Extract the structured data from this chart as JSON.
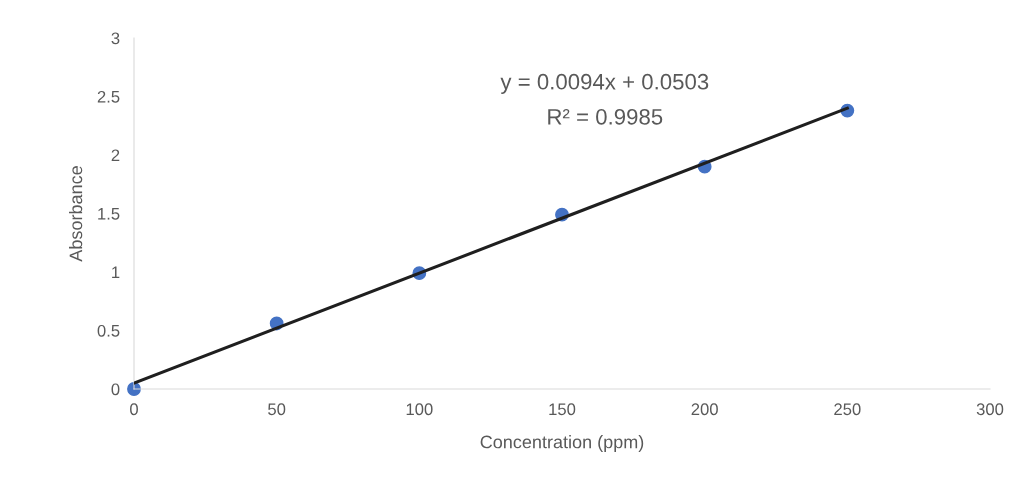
{
  "chart_data": {
    "type": "scatter",
    "xlabel": "Concentration (ppm)",
    "ylabel": "Absorbance",
    "x": [
      0,
      50,
      100,
      150,
      200,
      250
    ],
    "series": [
      {
        "color": "#4472c4",
        "values": [
          0.0,
          0.56,
          0.99,
          1.49,
          1.9,
          2.38
        ],
        "marker": "circle"
      },
      {
        "type": "line",
        "color": "#1f1f1f",
        "x": [
          0,
          250
        ],
        "values": [
          0.05,
          2.4
        ],
        "line_style": "solid"
      }
    ],
    "annotations": [
      "y = 0.0094x + 0.0503",
      "R² = 0.9985"
    ],
    "xlim": [
      0,
      300
    ],
    "xticks": [
      0,
      50,
      100,
      150,
      200,
      250,
      300
    ],
    "ylim": [
      0,
      3
    ],
    "yticks": [
      0,
      0.5,
      1,
      1.5,
      2,
      2.5,
      3
    ],
    "grid": false,
    "legend": false
  }
}
